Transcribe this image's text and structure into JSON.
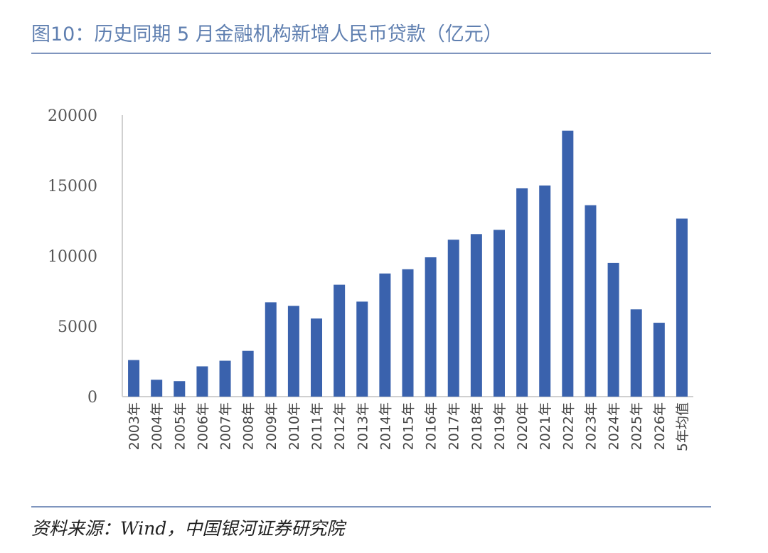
{
  "title": "图10：历史同期 5 月金融机构新增人民币贷款（亿元）",
  "source": "资料来源：Wind，中国银河证券研究院",
  "colors": {
    "bar": "#3a62ad",
    "title": "#5f7fb0",
    "rule": "#7f95be",
    "axis": "#d0d0d0"
  },
  "chart_data": {
    "type": "bar",
    "title": "",
    "xlabel": "",
    "ylabel": "",
    "ylim": [
      0,
      20000
    ],
    "yticks": [
      0,
      5000,
      10000,
      15000,
      20000
    ],
    "grid": false,
    "categories": [
      "2003年",
      "2004年",
      "2005年",
      "2006年",
      "2007年",
      "2008年",
      "2009年",
      "2010年",
      "2011年",
      "2012年",
      "2013年",
      "2014年",
      "2015年",
      "2016年",
      "2017年",
      "2018年",
      "2019年",
      "2020年",
      "2021年",
      "2022年",
      "2023年",
      "2024年",
      "2025年",
      "2026年",
      "5年均值"
    ],
    "values": [
      2600,
      1200,
      1100,
      2150,
      2550,
      3250,
      6700,
      6450,
      5550,
      7950,
      6750,
      8750,
      9050,
      9900,
      11150,
      11550,
      11850,
      14800,
      15000,
      18900,
      13600,
      9500,
      6200,
      5250,
      12650
    ]
  }
}
